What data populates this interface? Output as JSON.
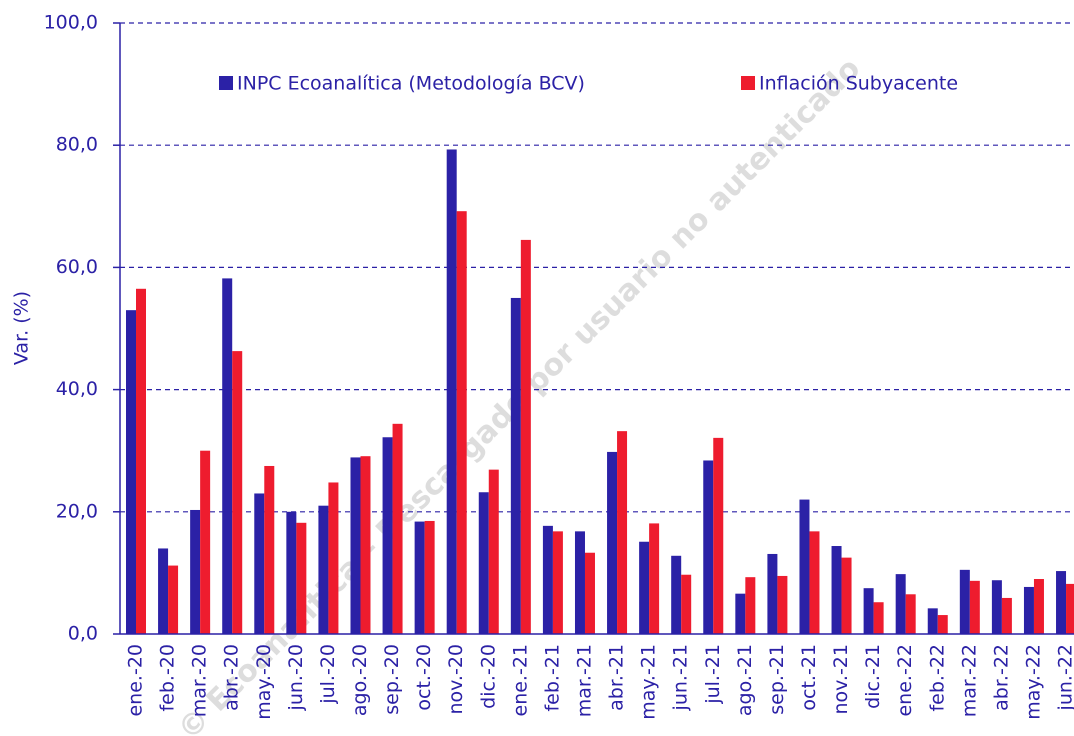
{
  "chart_data": {
    "type": "bar",
    "y_label": "Var. (%)",
    "watermark": "© Ecoanalítica – Descargado por usuario no autenticado",
    "categories": [
      "ene.-20",
      "feb.-20",
      "mar.-20",
      "abr.-20",
      "may.-20",
      "jun.-20",
      "jul.-20",
      "ago.-20",
      "sep.-20",
      "oct.-20",
      "nov.-20",
      "dic.-20",
      "ene.-21",
      "feb.-21",
      "mar.-21",
      "abr.-21",
      "may.-21",
      "jun.-21",
      "jul.-21",
      "ago.-21",
      "sep.-21",
      "oct.-21",
      "nov.-21",
      "dic.-21",
      "ene.-22",
      "feb.-22",
      "mar.-22",
      "abr.-22",
      "may.-22",
      "jun.-22"
    ],
    "series": [
      {
        "name": "INPC Ecoanalítica (Metodología BCV)",
        "color": "#2b21a6",
        "values": [
          53.0,
          14.0,
          20.3,
          58.2,
          23.0,
          20.0,
          21.0,
          28.9,
          32.2,
          18.4,
          79.3,
          23.2,
          55.0,
          17.7,
          16.8,
          29.8,
          15.1,
          12.8,
          28.4,
          6.6,
          13.1,
          22.0,
          14.4,
          7.5,
          9.8,
          4.2,
          10.5,
          8.8,
          7.7,
          10.3
        ]
      },
      {
        "name": "Inflación Subyacente",
        "color": "#ee1c2e",
        "values": [
          56.5,
          11.2,
          30.0,
          46.3,
          27.5,
          18.2,
          24.8,
          29.1,
          34.4,
          18.5,
          69.2,
          26.9,
          64.5,
          16.8,
          13.3,
          33.2,
          18.1,
          9.7,
          32.1,
          9.3,
          9.5,
          16.8,
          12.5,
          5.2,
          6.5,
          3.1,
          8.7,
          5.9,
          9.0,
          8.2
        ]
      }
    ],
    "ylim": [
      0,
      100
    ],
    "yticks": [
      {
        "value": 0,
        "label": "0,0"
      },
      {
        "value": 20,
        "label": "20,0"
      },
      {
        "value": 40,
        "label": "40,0"
      },
      {
        "value": 60,
        "label": "60,0"
      },
      {
        "value": 80,
        "label": "80,0"
      },
      {
        "value": 100,
        "label": "100,0"
      }
    ],
    "grid": true
  }
}
